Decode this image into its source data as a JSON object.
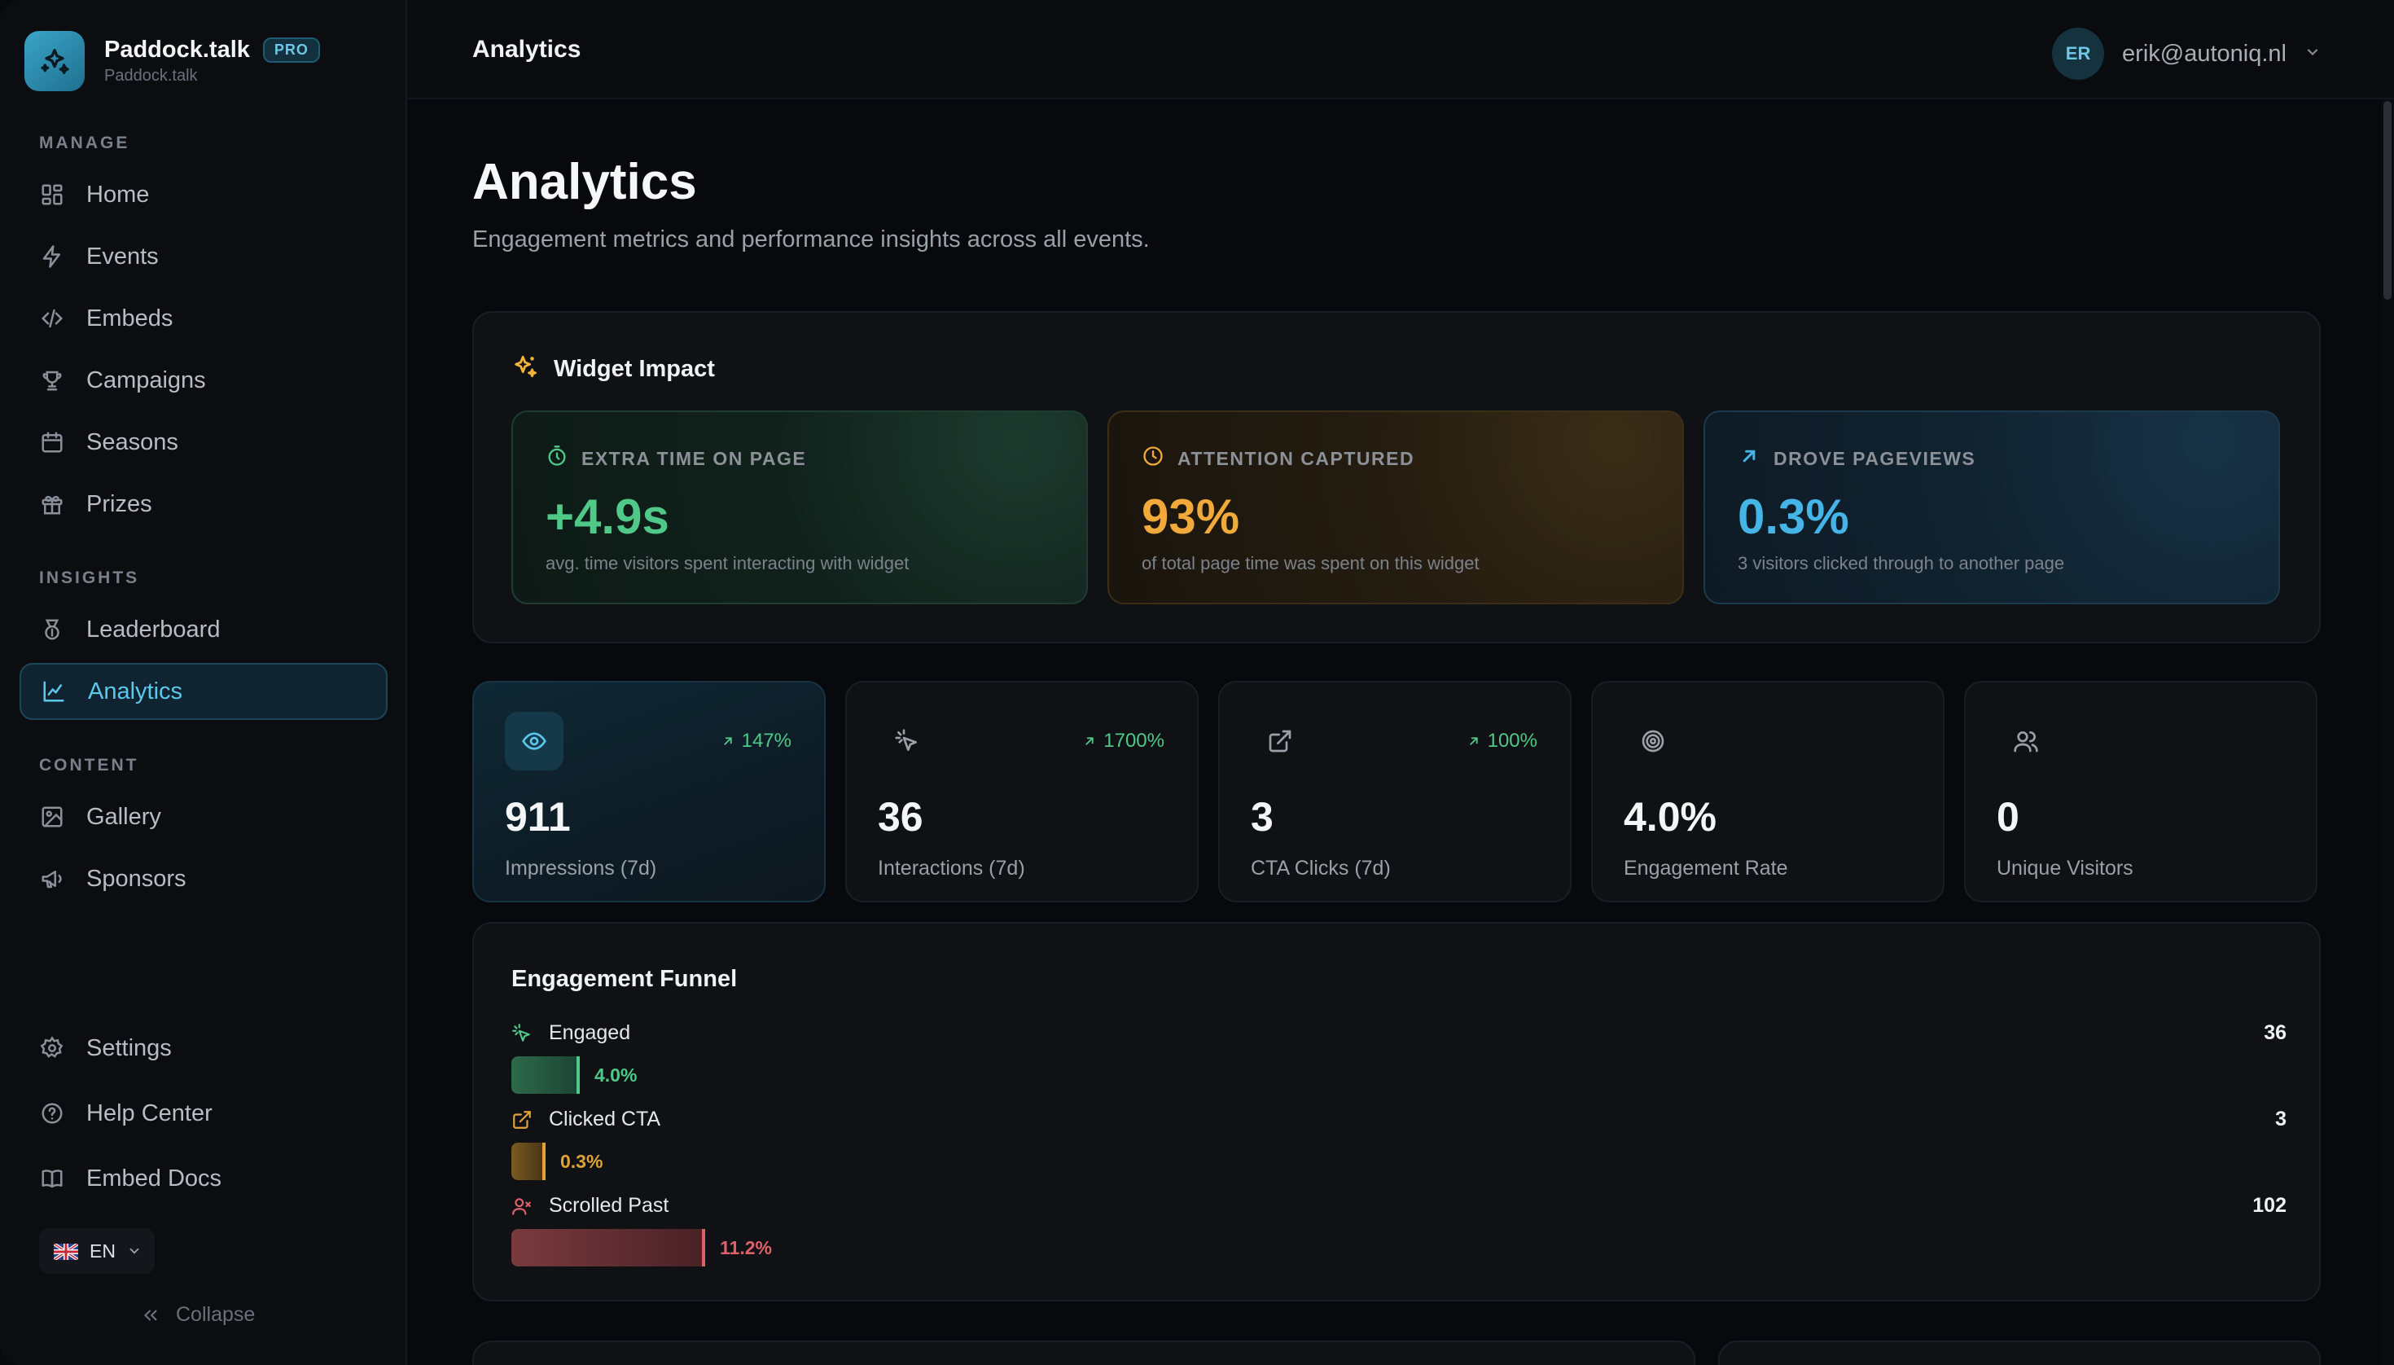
{
  "brand": {
    "name": "Paddock.talk",
    "badge": "PRO",
    "subtitle": "Paddock.talk",
    "accent": "#3aa5c8"
  },
  "sidebar": {
    "sections": {
      "manage": "MANAGE",
      "insights": "INSIGHTS",
      "content": "CONTENT"
    },
    "manage_items": [
      {
        "label": "Home",
        "icon": "grid-icon"
      },
      {
        "label": "Events",
        "icon": "lightning-icon"
      },
      {
        "label": "Embeds",
        "icon": "code-icon"
      },
      {
        "label": "Campaigns",
        "icon": "trophy-icon"
      },
      {
        "label": "Seasons",
        "icon": "calendar-icon"
      },
      {
        "label": "Prizes",
        "icon": "gift-icon"
      }
    ],
    "insights_items": [
      {
        "label": "Leaderboard",
        "icon": "medal-icon"
      },
      {
        "label": "Analytics",
        "icon": "chart-line-icon",
        "active": true
      }
    ],
    "content_items": [
      {
        "label": "Gallery",
        "icon": "image-icon"
      },
      {
        "label": "Sponsors",
        "icon": "megaphone-icon"
      }
    ],
    "footer_items": [
      {
        "label": "Settings",
        "icon": "gear-icon"
      },
      {
        "label": "Help Center",
        "icon": "help-circle-icon"
      },
      {
        "label": "Embed Docs",
        "icon": "book-icon"
      }
    ],
    "language": "EN",
    "collapse_label": "Collapse"
  },
  "header": {
    "title": "Analytics",
    "user": {
      "initials": "ER",
      "email": "erik@autoniq.nl"
    }
  },
  "page": {
    "title": "Analytics",
    "subtitle": "Engagement metrics and performance insights across all events."
  },
  "widget_impact": {
    "title": "Widget Impact",
    "cards": [
      {
        "label": "EXTRA TIME ON PAGE",
        "value": "+4.9s",
        "desc": "avg. time visitors spent interacting with widget",
        "color": "#4fc888"
      },
      {
        "label": "ATTENTION CAPTURED",
        "value": "93%",
        "desc": "of total page time was spent on this widget",
        "color": "#f0a93a"
      },
      {
        "label": "DROVE PAGEVIEWS",
        "value": "0.3%",
        "desc": "3 visitors clicked through to another page",
        "color": "#45b4e6"
      }
    ]
  },
  "stats": [
    {
      "value": "911",
      "label": "Impressions (7d)",
      "trend": "147%",
      "icon": "eye-icon"
    },
    {
      "value": "36",
      "label": "Interactions (7d)",
      "trend": "1700%",
      "icon": "pointer-click-icon"
    },
    {
      "value": "3",
      "label": "CTA Clicks (7d)",
      "trend": "100%",
      "icon": "external-link-icon"
    },
    {
      "value": "4.0%",
      "label": "Engagement Rate",
      "trend": "",
      "icon": "target-icon"
    },
    {
      "value": "0",
      "label": "Unique Visitors",
      "trend": "",
      "icon": "users-icon"
    }
  ],
  "funnel": {
    "title": "Engagement Funnel",
    "rows": [
      {
        "label": "Engaged",
        "count": "36",
        "percent": "4.0%",
        "fraction": 0.04,
        "color": "#4fc888",
        "icon": "pointer-click-icon"
      },
      {
        "label": "Clicked CTA",
        "count": "3",
        "percent": "0.3%",
        "fraction": 0.003,
        "color": "#e0a33a",
        "icon": "external-link-icon"
      },
      {
        "label": "Scrolled Past",
        "count": "102",
        "percent": "11.2%",
        "fraction": 0.112,
        "color": "#e0606a",
        "icon": "user-x-icon"
      }
    ]
  }
}
